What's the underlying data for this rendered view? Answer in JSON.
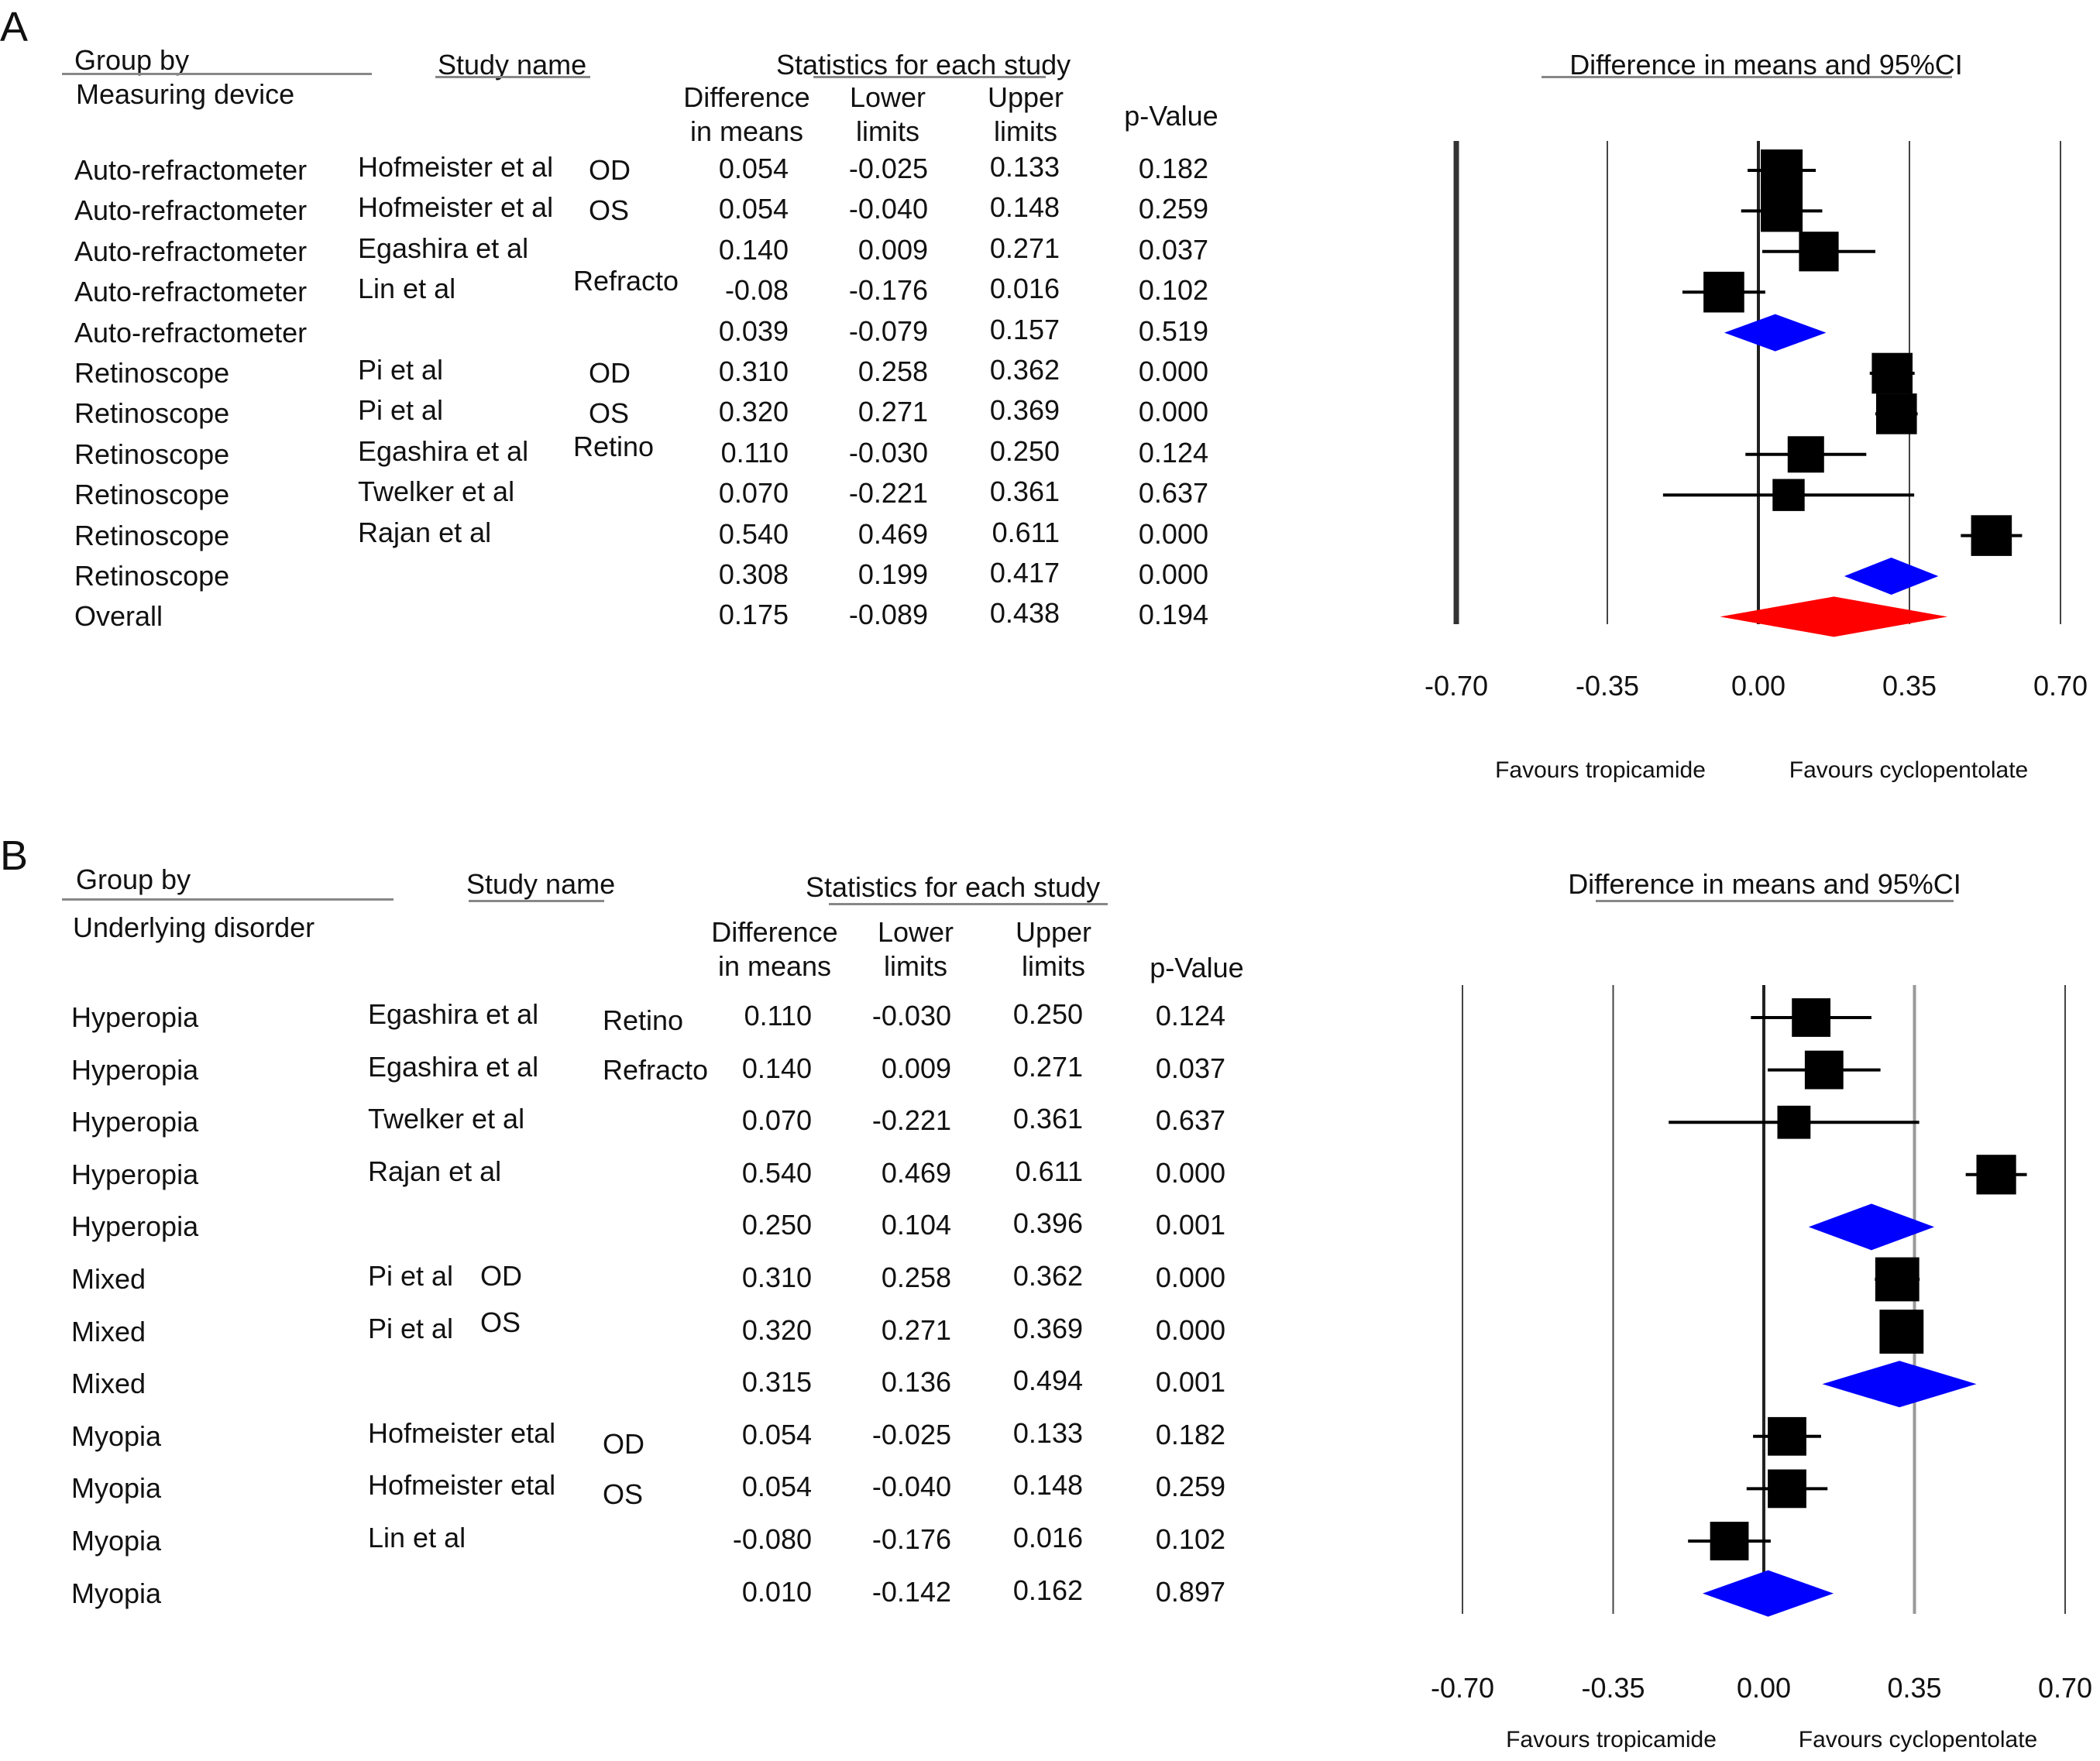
{
  "chart_data": [
    {
      "type": "forest",
      "panel_label": "A",
      "header": {
        "group_by": "Group by",
        "group_by_sub": "Measuring device",
        "study_name": "Study name",
        "statistics": "Statistics for each study",
        "col_diff": "Difference\nin means",
        "col_lower": "Lower\nlimits",
        "col_upper": "Upper\nlimits",
        "col_p": "p-Value",
        "plot_title": "Difference in means and 95%CI"
      },
      "xlim": [
        -0.7,
        0.7
      ],
      "ticks": [
        "-0.70",
        "-0.35",
        "0.00",
        "0.35",
        "0.70"
      ],
      "favours_left": "Favours tropicamide",
      "favours_right": "Favours cyclopentolate",
      "colors": {
        "study": "#000000",
        "subgroup": "#0000ff",
        "overall": "#ff0000"
      },
      "rows": [
        {
          "group": "Auto-refractometer",
          "study": "Hofmeister et al",
          "sub": "OD",
          "diff": "0.054",
          "lower": "-0.025",
          "upper": "0.133",
          "p": "0.182",
          "kind": "study",
          "weight": 1.0
        },
        {
          "group": "Auto-refractometer",
          "study": "Hofmeister et al",
          "sub": "OS",
          "diff": "0.054",
          "lower": "-0.040",
          "upper": "0.148",
          "p": "0.259",
          "kind": "study",
          "weight": 1.0
        },
        {
          "group": "Auto-refractometer",
          "study": "Egashira et al",
          "sub": "Refracto",
          "diff": "0.140",
          "lower": "0.009",
          "upper": "0.271",
          "p": "0.037",
          "kind": "study",
          "weight": 0.9
        },
        {
          "group": "Auto-refractometer",
          "study": "Lin et al",
          "sub": "",
          "diff": "-0.08",
          "lower": "-0.176",
          "upper": "0.016",
          "p": "0.102",
          "kind": "study",
          "weight": 0.95
        },
        {
          "group": "Auto-refractometer",
          "study": "",
          "sub": "",
          "diff": "0.039",
          "lower": "-0.079",
          "upper": "0.157",
          "p": "0.519",
          "kind": "subgroup",
          "weight": 1.0
        },
        {
          "group": "Retinoscope",
          "study": "Pi et al",
          "sub": "OD",
          "diff": "0.310",
          "lower": "0.258",
          "upper": "0.362",
          "p": "0.000",
          "kind": "study",
          "weight": 0.95
        },
        {
          "group": "Retinoscope",
          "study": "Pi et al",
          "sub": "OS",
          "diff": "0.320",
          "lower": "0.271",
          "upper": "0.369",
          "p": "0.000",
          "kind": "study",
          "weight": 0.95
        },
        {
          "group": "Retinoscope",
          "study": "Egashira et al",
          "sub": "Retino",
          "diff": "0.110",
          "lower": "-0.030",
          "upper": "0.250",
          "p": "0.124",
          "kind": "study",
          "weight": 0.75
        },
        {
          "group": "Retinoscope",
          "study": "Twelker et al",
          "sub": "",
          "diff": "0.070",
          "lower": "-0.221",
          "upper": "0.361",
          "p": "0.637",
          "kind": "study",
          "weight": 0.55
        },
        {
          "group": "Retinoscope",
          "study": "Rajan et al",
          "sub": "",
          "diff": "0.540",
          "lower": "0.469",
          "upper": "0.611",
          "p": "0.000",
          "kind": "study",
          "weight": 0.95
        },
        {
          "group": "Retinoscope",
          "study": "",
          "sub": "",
          "diff": "0.308",
          "lower": "0.199",
          "upper": "0.417",
          "p": "0.000",
          "kind": "subgroup",
          "weight": 1.0
        },
        {
          "group": "Overall",
          "study": "",
          "sub": "",
          "diff": "0.175",
          "lower": "-0.089",
          "upper": "0.438",
          "p": "0.194",
          "kind": "overall",
          "weight": 1.0
        }
      ]
    },
    {
      "type": "forest",
      "panel_label": "B",
      "header": {
        "group_by": "Group by",
        "group_by_sub": "Underlying disorder",
        "study_name": "Study name",
        "statistics": "Statistics for each study",
        "col_diff": "Difference\nin means",
        "col_lower": "Lower\nlimits",
        "col_upper": "Upper\nlimits",
        "col_p": "p-Value",
        "plot_title": "Difference in means and 95%CI"
      },
      "xlim": [
        -0.7,
        0.7
      ],
      "ticks": [
        "-0.70",
        "-0.35",
        "0.00",
        "0.35",
        "0.70"
      ],
      "favours_left": "Favours tropicamide",
      "favours_right": "Favours cyclopentolate",
      "colors": {
        "study": "#000000",
        "subgroup": "#0000ff"
      },
      "rows": [
        {
          "group": "Hyperopia",
          "study": "Egashira et al",
          "sub": "Retino",
          "diff": "0.110",
          "lower": "-0.030",
          "upper": "0.250",
          "p": "0.124",
          "kind": "study",
          "weight": 0.85
        },
        {
          "group": "Hyperopia",
          "study": "Egashira et al",
          "sub": "Refracto",
          "diff": "0.140",
          "lower": "0.009",
          "upper": "0.271",
          "p": "0.037",
          "kind": "study",
          "weight": 0.85
        },
        {
          "group": "Hyperopia",
          "study": "Twelker et al",
          "sub": "",
          "diff": "0.070",
          "lower": "-0.221",
          "upper": "0.361",
          "p": "0.637",
          "kind": "study",
          "weight": 0.6
        },
        {
          "group": "Hyperopia",
          "study": "Rajan et al",
          "sub": "",
          "diff": "0.540",
          "lower": "0.469",
          "upper": "0.611",
          "p": "0.000",
          "kind": "study",
          "weight": 0.9
        },
        {
          "group": "Hyperopia",
          "study": "",
          "sub": "",
          "diff": "0.250",
          "lower": "0.104",
          "upper": "0.396",
          "p": "0.001",
          "kind": "subgroup",
          "weight": 1.0
        },
        {
          "group": "Mixed",
          "study": "Pi et al",
          "sub": "OD",
          "diff": "0.310",
          "lower": "0.258",
          "upper": "0.362",
          "p": "0.000",
          "kind": "study",
          "weight": 1.1
        },
        {
          "group": "Mixed",
          "study": "Pi et al",
          "sub": "OS",
          "diff": "0.320",
          "lower": "0.271",
          "upper": "0.369",
          "p": "0.000",
          "kind": "study",
          "weight": 1.1
        },
        {
          "group": "Mixed",
          "study": "",
          "sub": "",
          "diff": "0.315",
          "lower": "0.136",
          "upper": "0.494",
          "p": "0.001",
          "kind": "subgroup",
          "weight": 1.0
        },
        {
          "group": "Myopia",
          "study": "Hofmeister etal",
          "sub": "OD",
          "diff": "0.054",
          "lower": "-0.025",
          "upper": "0.133",
          "p": "0.182",
          "kind": "study",
          "weight": 0.85
        },
        {
          "group": "Myopia",
          "study": "Hofmeister etal",
          "sub": "OS",
          "diff": "0.054",
          "lower": "-0.040",
          "upper": "0.148",
          "p": "0.259",
          "kind": "study",
          "weight": 0.85
        },
        {
          "group": "Myopia",
          "study": "Lin et al",
          "sub": "",
          "diff": "-0.080",
          "lower": "-0.176",
          "upper": "0.016",
          "p": "0.102",
          "kind": "study",
          "weight": 0.85
        },
        {
          "group": "Myopia",
          "study": "",
          "sub": "",
          "diff": "0.010",
          "lower": "-0.142",
          "upper": "0.162",
          "p": "0.897",
          "kind": "subgroup",
          "weight": 1.0
        }
      ]
    }
  ]
}
